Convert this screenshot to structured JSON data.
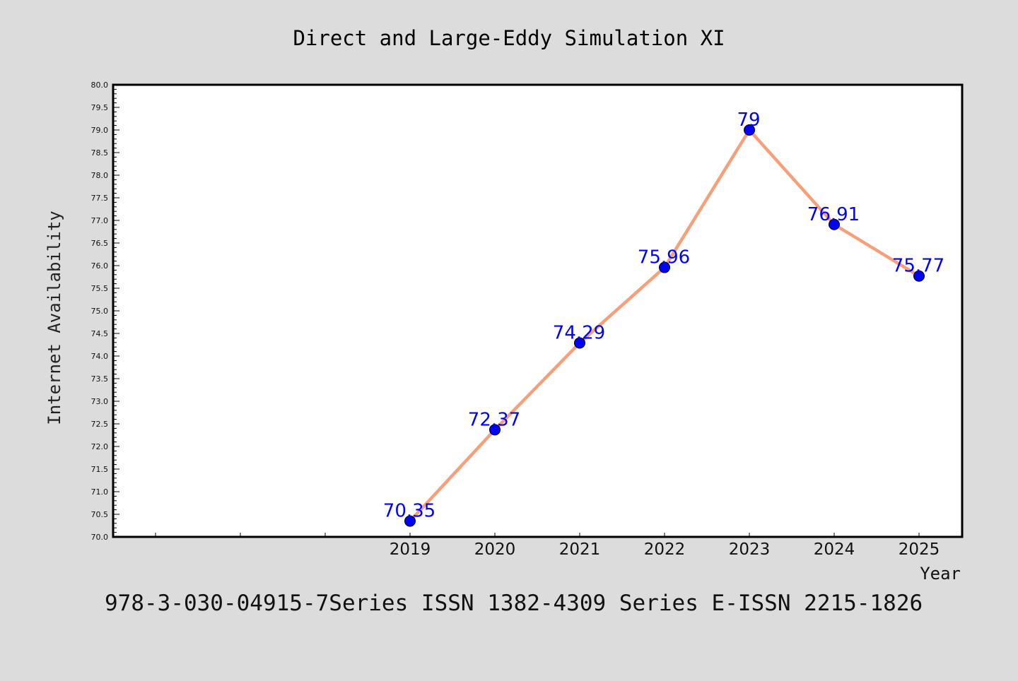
{
  "chart_data": {
    "type": "line",
    "title": "Direct and Large-Eddy Simulation XI",
    "xlabel": "Year",
    "ylabel": "Internet Availability",
    "footer": "978-3-030-04915-7Series ISSN 1382-4309 Series E-ISSN 2215-1826",
    "x": [
      "2019",
      "2020",
      "2021",
      "2022",
      "2023",
      "2024",
      "2025"
    ],
    "series": [
      {
        "values": [
          70.35,
          72.37,
          74.29,
          75.96,
          79,
          76.91,
          75.77
        ],
        "data_labels": [
          "70.35",
          "72.37",
          "74.29",
          "75.96",
          "79",
          "76.91",
          "75.77"
        ],
        "line_color": "#f5a07a",
        "marker_color": "#0000ff"
      }
    ],
    "ylim": [
      70.0,
      80.0
    ],
    "y_ticks": [
      "70.0",
      "70.5",
      "71.0",
      "71.5",
      "72.0",
      "72.5",
      "73.0",
      "73.5",
      "74.0",
      "74.5",
      "75.0",
      "75.5",
      "76.0",
      "76.5",
      "77.0",
      "77.5",
      "78.0",
      "78.5",
      "79.0",
      "79.5",
      "80.0"
    ],
    "grid": false,
    "legend": "none",
    "colors": {
      "background": "#dcdcdc",
      "plot_background": "#ffffff",
      "label_color": "#0000ff"
    }
  }
}
